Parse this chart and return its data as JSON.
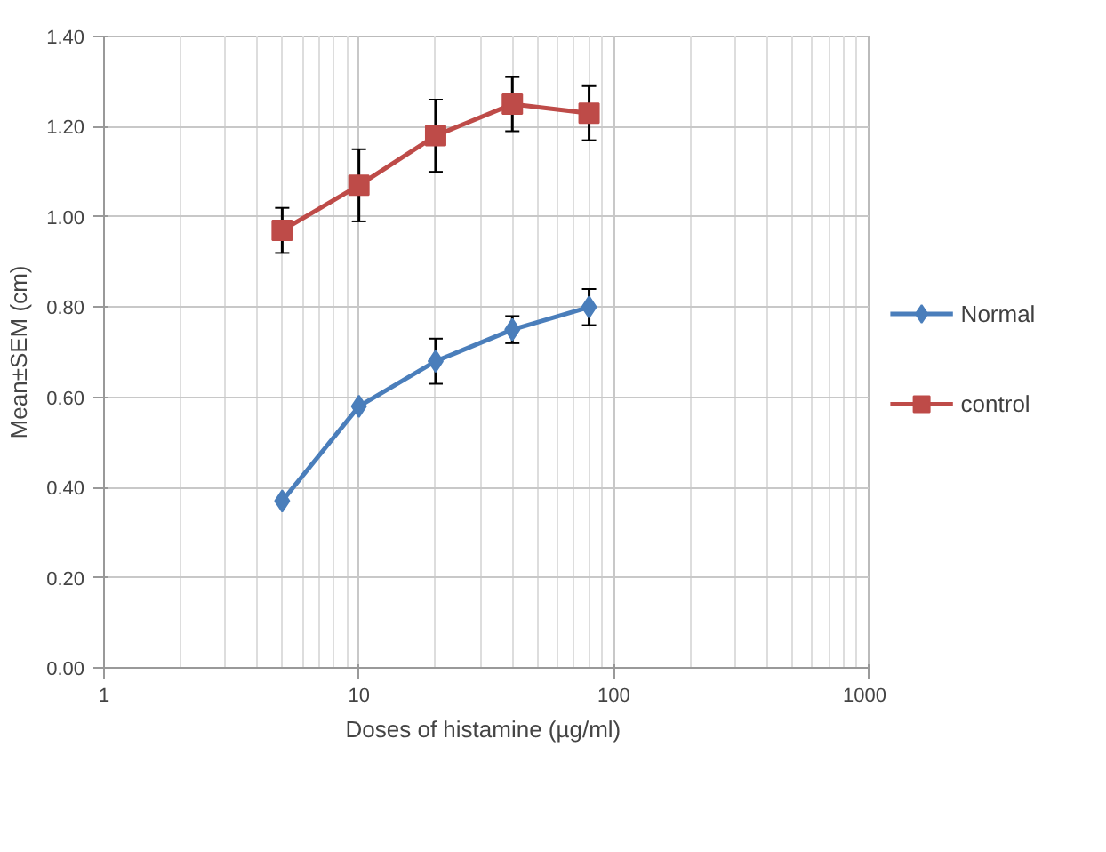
{
  "chart_data": {
    "type": "line",
    "xlabel": "Doses of histamine  (µg/ml)",
    "ylabel": "Mean±SEM (cm)",
    "x": [
      5,
      10,
      20,
      40,
      80
    ],
    "series": [
      {
        "name": "Normal",
        "color": "#4a7ebb",
        "marker": "diamond",
        "values": [
          0.37,
          0.58,
          0.68,
          0.75,
          0.8
        ],
        "errors": [
          null,
          null,
          0.05,
          0.03,
          0.04
        ]
      },
      {
        "name": "control",
        "color": "#be4b48",
        "marker": "square",
        "values": [
          0.97,
          1.07,
          1.18,
          1.25,
          1.23
        ],
        "errors": [
          0.05,
          0.08,
          0.08,
          0.06,
          0.06
        ]
      }
    ],
    "log": "x",
    "xlim": [
      1,
      1000
    ],
    "xticks": [
      1,
      10,
      100,
      1000
    ],
    "ylim": [
      0,
      1.4
    ],
    "yticks": [
      {
        "value": 0,
        "label": "0.00"
      },
      {
        "value": 0.2,
        "label": "0.20"
      },
      {
        "value": 0.4,
        "label": "0.40"
      },
      {
        "value": 0.6,
        "label": "0.60"
      },
      {
        "value": 0.8,
        "label": "0.80"
      },
      {
        "value": 1.0,
        "label": "1.00"
      },
      {
        "value": 1.2,
        "label": "1.20"
      },
      {
        "value": 1.4,
        "label": "1.40"
      }
    ],
    "grid": true,
    "legend": "right"
  }
}
